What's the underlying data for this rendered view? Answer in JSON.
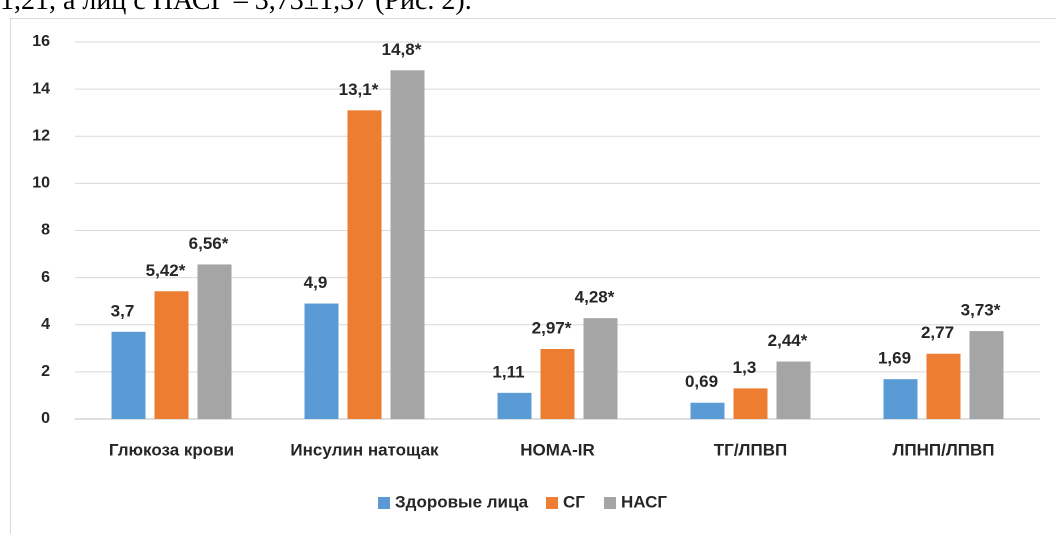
{
  "context_text": "1,21, а лиц с НАСГ – 3,73±1,37 (Рис. 2).",
  "chart_data": {
    "type": "bar",
    "categories": [
      "Глюкоза крови",
      "Инсулин натощак",
      "HOMA-IR",
      "ТГ/ЛПВП",
      "ЛПНП/ЛПВП"
    ],
    "series": [
      {
        "name": "Здоровые лица",
        "color": "#5b9bd5",
        "values": [
          3.7,
          4.9,
          1.11,
          0.69,
          1.69
        ],
        "value_labels": [
          "3,7",
          "4,9",
          "1,11",
          "0,69",
          "1,69"
        ]
      },
      {
        "name": "СГ",
        "color": "#ed7d31",
        "values": [
          5.42,
          13.1,
          2.97,
          1.3,
          2.77
        ],
        "value_labels": [
          "5,42*",
          "13,1*",
          "2,97*",
          "1,3",
          "2,77"
        ]
      },
      {
        "name": "НАСГ",
        "color": "#a5a5a5",
        "values": [
          6.56,
          14.8,
          4.28,
          2.44,
          3.73
        ],
        "value_labels": [
          "6,56*",
          "14,8*",
          "4,28*",
          "2,44*",
          "3,73*"
        ]
      }
    ],
    "ylim": [
      0,
      16
    ],
    "yticks": [
      0,
      2,
      4,
      6,
      8,
      10,
      12,
      14,
      16
    ],
    "grid": true,
    "legend": "bottom"
  }
}
